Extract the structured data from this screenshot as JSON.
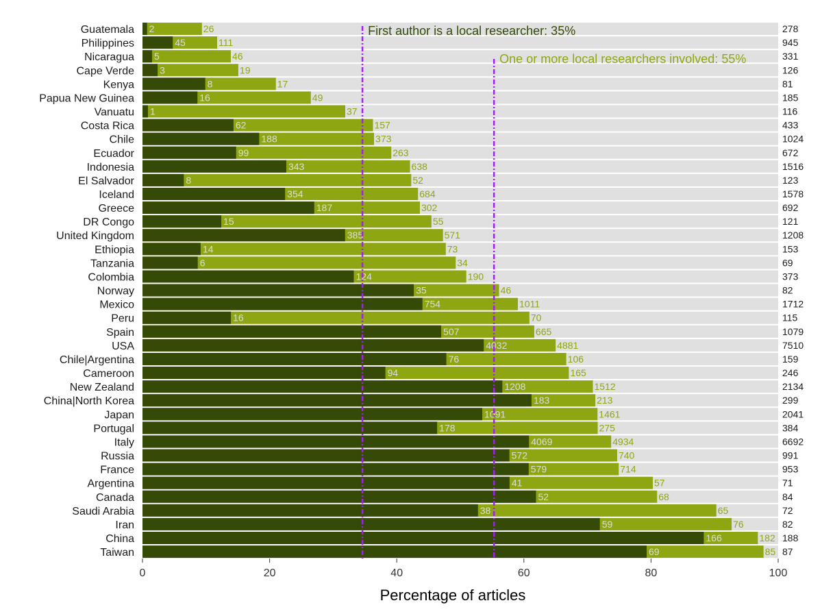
{
  "chart_data": {
    "type": "bar",
    "orientation": "horizontal",
    "stacked": true,
    "xlabel": "Percentage of articles",
    "xlim": [
      0,
      100
    ],
    "x_ticks": [
      0,
      20,
      40,
      60,
      80,
      100
    ],
    "colors": {
      "first_author": "#354a07",
      "any_local": "#8ea612",
      "background": "#e0e0e0",
      "reference_line": "#a020f0",
      "label_light": "#dddddd",
      "label_green": "#8ea612"
    },
    "annotations": [
      {
        "text": "First author is a local researcher: 35%",
        "x": 34.6,
        "color": "#354a07"
      },
      {
        "text": "One or more local researchers involved: 55%",
        "x": 55.3,
        "color": "#8ea612"
      }
    ],
    "rows": [
      {
        "country": "Guatemala",
        "first": 2,
        "any": 26,
        "total": 278
      },
      {
        "country": "Philippines",
        "first": 45,
        "any": 111,
        "total": 945
      },
      {
        "country": "Nicaragua",
        "first": 5,
        "any": 46,
        "total": 331
      },
      {
        "country": "Cape Verde",
        "first": 3,
        "any": 19,
        "total": 126
      },
      {
        "country": "Kenya",
        "first": 8,
        "any": 17,
        "total": 81
      },
      {
        "country": "Papua New Guinea",
        "first": 16,
        "any": 49,
        "total": 185
      },
      {
        "country": "Vanuatu",
        "first": 1,
        "any": 37,
        "total": 116
      },
      {
        "country": "Costa Rica",
        "first": 62,
        "any": 157,
        "total": 433
      },
      {
        "country": "Chile",
        "first": 188,
        "any": 373,
        "total": 1024
      },
      {
        "country": "Ecuador",
        "first": 99,
        "any": 263,
        "total": 672
      },
      {
        "country": "Indonesia",
        "first": 343,
        "any": 638,
        "total": 1516
      },
      {
        "country": "El Salvador",
        "first": 8,
        "any": 52,
        "total": 123
      },
      {
        "country": "Iceland",
        "first": 354,
        "any": 684,
        "total": 1578
      },
      {
        "country": "Greece",
        "first": 187,
        "any": 302,
        "total": 692
      },
      {
        "country": "DR Congo",
        "first": 15,
        "any": 55,
        "total": 121
      },
      {
        "country": "United Kingdom",
        "first": 385,
        "any": 571,
        "total": 1208
      },
      {
        "country": "Ethiopia",
        "first": 14,
        "any": 73,
        "total": 153
      },
      {
        "country": "Tanzania",
        "first": 6,
        "any": 34,
        "total": 69
      },
      {
        "country": "Colombia",
        "first": 124,
        "any": 190,
        "total": 373
      },
      {
        "country": "Norway",
        "first": 35,
        "any": 46,
        "total": 82
      },
      {
        "country": "Mexico",
        "first": 754,
        "any": 1011,
        "total": 1712
      },
      {
        "country": "Peru",
        "first": 16,
        "any": 70,
        "total": 115
      },
      {
        "country": "Spain",
        "first": 507,
        "any": 665,
        "total": 1079
      },
      {
        "country": "USA",
        "first": 4032,
        "any": 4881,
        "total": 7510
      },
      {
        "country": "Chile|Argentina",
        "first": 76,
        "any": 106,
        "total": 159
      },
      {
        "country": "Cameroon",
        "first": 94,
        "any": 165,
        "total": 246
      },
      {
        "country": "New Zealand",
        "first": 1208,
        "any": 1512,
        "total": 2134
      },
      {
        "country": "China|North Korea",
        "first": 183,
        "any": 213,
        "total": 299
      },
      {
        "country": "Japan",
        "first": 1091,
        "any": 1461,
        "total": 2041
      },
      {
        "country": "Portugal",
        "first": 178,
        "any": 275,
        "total": 384
      },
      {
        "country": "Italy",
        "first": 4069,
        "any": 4934,
        "total": 6692
      },
      {
        "country": "Russia",
        "first": 572,
        "any": 740,
        "total": 991
      },
      {
        "country": "France",
        "first": 579,
        "any": 714,
        "total": 953
      },
      {
        "country": "Argentina",
        "first": 41,
        "any": 57,
        "total": 71
      },
      {
        "country": "Canada",
        "first": 52,
        "any": 68,
        "total": 84
      },
      {
        "country": "Saudi Arabia",
        "first": 38,
        "any": 65,
        "total": 72
      },
      {
        "country": "Iran",
        "first": 59,
        "any": 76,
        "total": 82
      },
      {
        "country": "China",
        "first": 166,
        "any": 182,
        "total": 188
      },
      {
        "country": "Taiwan",
        "first": 69,
        "any": 85,
        "total": 87
      }
    ]
  }
}
